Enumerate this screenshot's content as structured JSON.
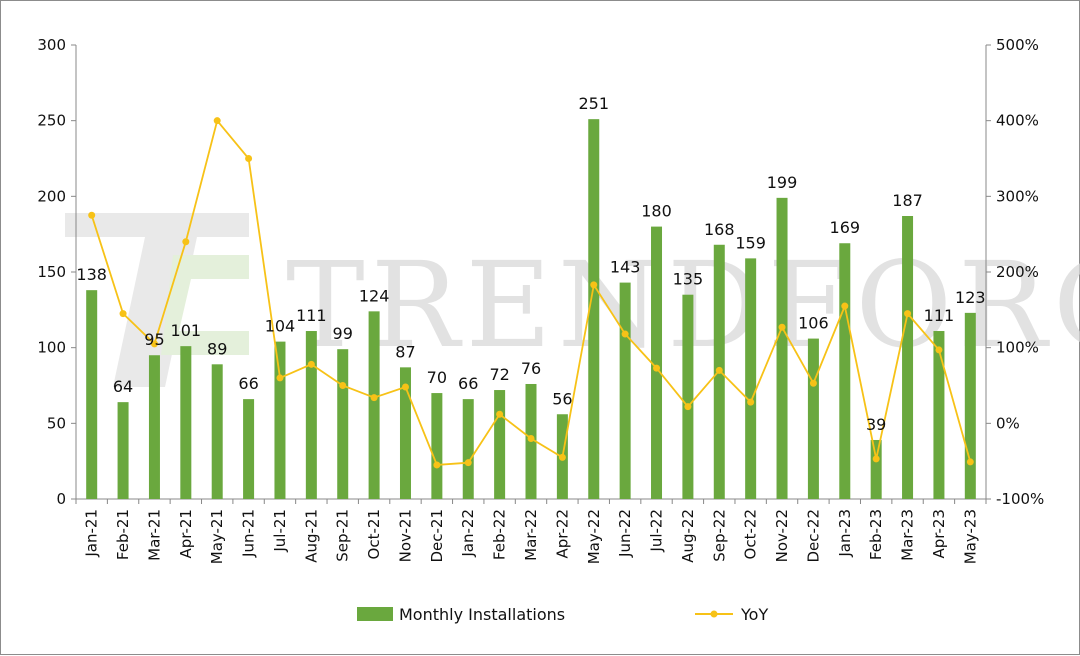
{
  "chart_data": {
    "type": "bar",
    "title": "",
    "xlabel": "",
    "ylabel": "",
    "ylim": [
      0,
      300
    ],
    "y2lim": [
      -100,
      500
    ],
    "yticks": [
      "0",
      "50",
      "100",
      "150",
      "200",
      "250",
      "300"
    ],
    "y2ticks": [
      "-100%",
      "0%",
      "100%",
      "200%",
      "300%",
      "400%",
      "500%"
    ],
    "categories": [
      "Jan-21",
      "Feb-21",
      "Mar-21",
      "Apr-21",
      "May-21",
      "Jun-21",
      "Jul-21",
      "Aug-21",
      "Sep-21",
      "Oct-21",
      "Nov-21",
      "Dec-21",
      "Jan-22",
      "Feb-22",
      "Mar-22",
      "Apr-22",
      "May-22",
      "Jun-22",
      "Jul-22",
      "Aug-22",
      "Sep-22",
      "Oct-22",
      "Nov-22",
      "Dec-22",
      "Jan-23",
      "Feb-23",
      "Mar-23",
      "Apr-23",
      "May-23"
    ],
    "series": [
      {
        "name": "Monthly Installations",
        "type": "bar",
        "axis": "left",
        "color": "#6aa83e",
        "values": [
          138,
          64,
          95,
          101,
          89,
          66,
          104,
          111,
          99,
          124,
          87,
          70,
          66,
          72,
          76,
          56,
          251,
          143,
          180,
          135,
          168,
          159,
          199,
          106,
          169,
          39,
          187,
          111,
          123
        ]
      },
      {
        "name": "YoY",
        "type": "line",
        "axis": "right",
        "color": "#f7c217",
        "values": [
          275,
          145,
          105,
          240,
          400,
          350,
          60,
          78,
          50,
          34,
          48,
          -55,
          -52,
          12,
          -20,
          -45,
          183,
          118,
          73,
          22,
          70,
          28,
          127,
          53,
          155,
          -47,
          145,
          97,
          -51
        ]
      }
    ],
    "legend_position": "bottom"
  },
  "watermark": {
    "text": "TRENDFORCE"
  }
}
